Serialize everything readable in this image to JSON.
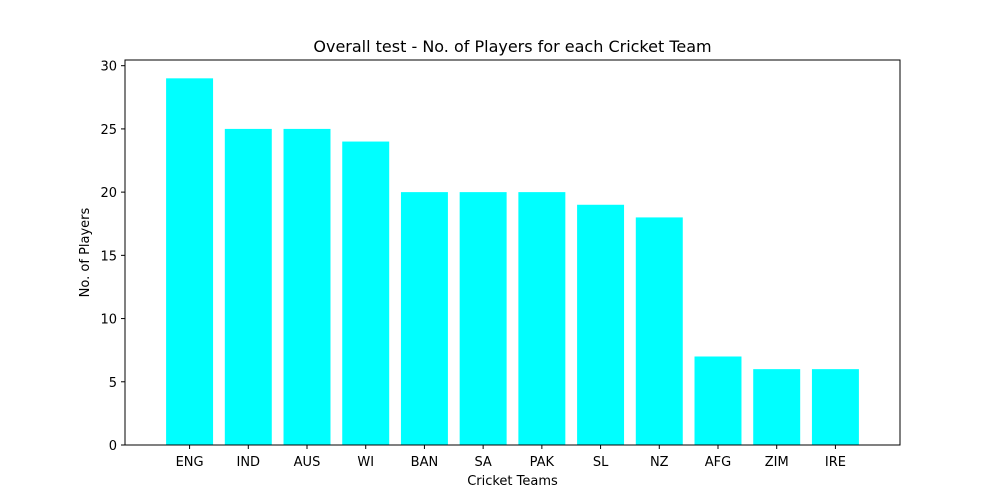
{
  "chart_data": {
    "type": "bar",
    "title": "Overall test - No. of Players for each Cricket Team",
    "xlabel": "Cricket Teams",
    "ylabel": "No. of Players",
    "categories": [
      "ENG",
      "IND",
      "AUS",
      "WI",
      "BAN",
      "SA",
      "PAK",
      "SL",
      "NZ",
      "AFG",
      "ZIM",
      "IRE"
    ],
    "values": [
      29,
      25,
      25,
      24,
      20,
      20,
      20,
      19,
      18,
      7,
      6,
      6
    ],
    "ylim": [
      0,
      30.45
    ],
    "yticks": [
      0,
      5,
      10,
      15,
      20,
      25,
      30
    ],
    "bar_color": "#00ffff",
    "grid": false,
    "legend": false
  }
}
